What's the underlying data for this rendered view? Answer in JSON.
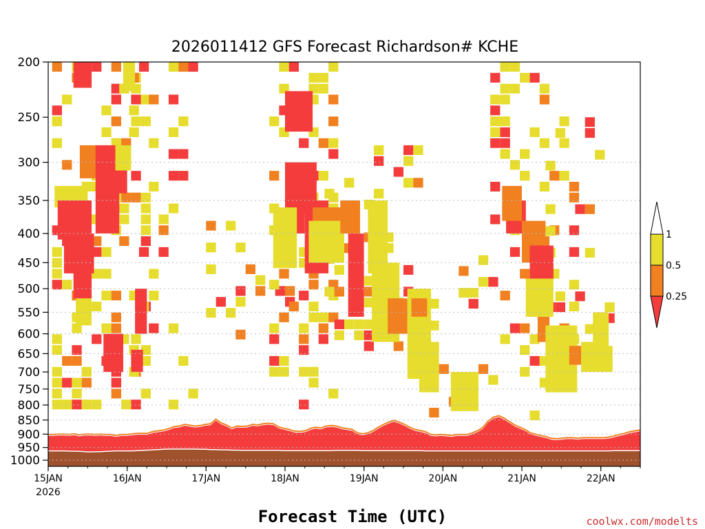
{
  "chart_data": {
    "type": "heatmap",
    "title": "2026011412 GFS Forecast Richardson# KCHE",
    "xlabel": "Forecast Time (UTC)",
    "ylabel": "",
    "x_ticks": [
      {
        "t": 0.5,
        "label": "15JAN",
        "sub": "2026"
      },
      {
        "t": 1.5,
        "label": "16JAN",
        "sub": ""
      },
      {
        "t": 2.5,
        "label": "17JAN",
        "sub": ""
      },
      {
        "t": 3.5,
        "label": "18JAN",
        "sub": ""
      },
      {
        "t": 4.5,
        "label": "19JAN",
        "sub": ""
      },
      {
        "t": 5.5,
        "label": "20JAN",
        "sub": ""
      },
      {
        "t": 6.5,
        "label": "21JAN",
        "sub": ""
      },
      {
        "t": 7.5,
        "label": "22JAN",
        "sub": ""
      }
    ],
    "xlim_days_since_14JAN00Z": [
      0.5,
      8.0
    ],
    "y_ticks": [
      "200",
      "250",
      "300",
      "350",
      "400",
      "450",
      "500",
      "550",
      "600",
      "650",
      "700",
      "750",
      "800",
      "850",
      "900",
      "950",
      "1000"
    ],
    "ylim_hPa": [
      200,
      1025
    ],
    "grid_levels_hPa": [
      300,
      350,
      400,
      450,
      500,
      550,
      600,
      650,
      700,
      750,
      800,
      850,
      900,
      950,
      1000
    ],
    "legend": {
      "levels": [
        "1",
        "0.5",
        "0.25"
      ],
      "colors": {
        "over": "#ffffff",
        "band_0_5_1": "#e6dd2e",
        "band_0_25_0_5": "#f08020",
        "band_lt_0_25": "#f43c3c"
      }
    },
    "colors": {
      "yellow": "#e6dd2e",
      "orange": "#f08020",
      "red": "#f43c3c",
      "ground": "#a0522d",
      "grid": "#bbbbbb"
    },
    "column_width_hours": 3,
    "boundary_layer_top_hPa": [
      906,
      906,
      905,
      905,
      906,
      904,
      908,
      905,
      905,
      906,
      905,
      906,
      906,
      910,
      906,
      906,
      904,
      902,
      902,
      902,
      895,
      893,
      890,
      885,
      878,
      876,
      870,
      873,
      876,
      874,
      870,
      868,
      852,
      865,
      872,
      883,
      876,
      877,
      876,
      870,
      872,
      868,
      866,
      868,
      879,
      884,
      888,
      894,
      895,
      893,
      885,
      880,
      883,
      876,
      874,
      876,
      882,
      885,
      888,
      900,
      904,
      900,
      892,
      880,
      870,
      862,
      856,
      862,
      870,
      880,
      888,
      892,
      896,
      906,
      908,
      906,
      908,
      910,
      906,
      906,
      906,
      900,
      892,
      880,
      858,
      845,
      840,
      848,
      860,
      872,
      880,
      888,
      900,
      905,
      910,
      914,
      920,
      922,
      920,
      918,
      918,
      920,
      918,
      918,
      918,
      918,
      918,
      916,
      912,
      906,
      902,
      896,
      893,
      890
    ],
    "surface_pressure_hPa": [
      963,
      963,
      963,
      963,
      964,
      964,
      965,
      966,
      967,
      966,
      966,
      965,
      964,
      963,
      963,
      963,
      963,
      962,
      961,
      960,
      959,
      958,
      957,
      956,
      956,
      956,
      956,
      956,
      956,
      957,
      957,
      958,
      958,
      959,
      959,
      960,
      960,
      961,
      961,
      961,
      961,
      961,
      961,
      961,
      961,
      962,
      962,
      962,
      962,
      962,
      962,
      962,
      962,
      962,
      962,
      961,
      961,
      961,
      961,
      961,
      962,
      962,
      962,
      962,
      962,
      962,
      962,
      962,
      962,
      962,
      962,
      962,
      963,
      963,
      963,
      963,
      963,
      963,
      963,
      963,
      963,
      963,
      963,
      963,
      963,
      963,
      963,
      963,
      963,
      963,
      963,
      963,
      963,
      963,
      963,
      963,
      963,
      963,
      963,
      963,
      963,
      963,
      963,
      963,
      963,
      963,
      963,
      963,
      962,
      962,
      962,
      962,
      962,
      962
    ],
    "blobs": [
      {
        "t": 0.82,
        "t2": 1.05,
        "p1": 200,
        "p2": 222,
        "v": "red"
      },
      {
        "t": 0.58,
        "t2": 1.0,
        "p1": 330,
        "p2": 360,
        "v": "yellow"
      },
      {
        "t": 0.62,
        "t2": 1.05,
        "p1": 350,
        "p2": 410,
        "v": "red"
      },
      {
        "t": 0.7,
        "t2": 1.08,
        "p1": 400,
        "p2": 470,
        "v": "red"
      },
      {
        "t": 0.82,
        "t2": 1.05,
        "p1": 450,
        "p2": 520,
        "v": "red"
      },
      {
        "t": 0.85,
        "t2": 1.05,
        "p1": 520,
        "p2": 580,
        "v": "yellow"
      },
      {
        "t": 0.9,
        "t2": 1.25,
        "p1": 280,
        "p2": 320,
        "v": "orange"
      },
      {
        "t": 1.1,
        "t2": 1.5,
        "p1": 280,
        "p2": 340,
        "v": "red"
      },
      {
        "t": 1.35,
        "t2": 1.55,
        "p1": 280,
        "p2": 310,
        "v": "yellow"
      },
      {
        "t": 1.1,
        "t2": 1.4,
        "p1": 330,
        "p2": 400,
        "v": "red"
      },
      {
        "t": 1.2,
        "t2": 1.45,
        "p1": 600,
        "p2": 700,
        "v": "red"
      },
      {
        "t": 1.45,
        "t2": 1.6,
        "p1": 200,
        "p2": 225,
        "v": "yellow"
      },
      {
        "t": 1.55,
        "t2": 1.7,
        "p1": 640,
        "p2": 700,
        "v": "red"
      },
      {
        "t": 1.6,
        "t2": 1.75,
        "p1": 500,
        "p2": 600,
        "v": "red"
      },
      {
        "t": 3.5,
        "t2": 3.85,
        "p1": 225,
        "p2": 265,
        "v": "red"
      },
      {
        "t": 3.5,
        "t2": 3.9,
        "p1": 300,
        "p2": 370,
        "v": "red"
      },
      {
        "t": 3.55,
        "t2": 3.75,
        "p1": 340,
        "p2": 400,
        "v": "red"
      },
      {
        "t": 3.75,
        "t2": 4.05,
        "p1": 350,
        "p2": 470,
        "v": "red"
      },
      {
        "t": 3.35,
        "t2": 3.65,
        "p1": 360,
        "p2": 460,
        "v": "yellow"
      },
      {
        "t": 3.85,
        "t2": 4.3,
        "p1": 360,
        "p2": 400,
        "v": "orange"
      },
      {
        "t": 3.8,
        "t2": 4.25,
        "p1": 380,
        "p2": 450,
        "v": "yellow"
      },
      {
        "t": 4.2,
        "t2": 4.45,
        "p1": 350,
        "p2": 400,
        "v": "orange"
      },
      {
        "t": 4.3,
        "t2": 4.5,
        "p1": 400,
        "p2": 560,
        "v": "red"
      },
      {
        "t": 4.55,
        "t2": 4.8,
        "p1": 350,
        "p2": 470,
        "v": "yellow"
      },
      {
        "t": 4.6,
        "t2": 4.95,
        "p1": 450,
        "p2": 620,
        "v": "yellow"
      },
      {
        "t": 4.8,
        "t2": 5.05,
        "p1": 520,
        "p2": 600,
        "v": "orange"
      },
      {
        "t": 5.05,
        "t2": 5.35,
        "p1": 500,
        "p2": 720,
        "v": "yellow"
      },
      {
        "t": 5.1,
        "t2": 5.3,
        "p1": 520,
        "p2": 560,
        "v": "orange"
      },
      {
        "t": 5.2,
        "t2": 5.45,
        "p1": 620,
        "p2": 760,
        "v": "yellow"
      },
      {
        "t": 5.6,
        "t2": 5.95,
        "p1": 700,
        "p2": 820,
        "v": "yellow"
      },
      {
        "t": 6.3,
        "t2": 6.55,
        "p1": 350,
        "p2": 400,
        "v": "red"
      },
      {
        "t": 6.25,
        "t2": 6.5,
        "p1": 330,
        "p2": 380,
        "v": "orange"
      },
      {
        "t": 6.5,
        "t2": 6.8,
        "p1": 380,
        "p2": 450,
        "v": "orange"
      },
      {
        "t": 6.6,
        "t2": 6.9,
        "p1": 420,
        "p2": 480,
        "v": "red"
      },
      {
        "t": 6.55,
        "t2": 6.9,
        "p1": 480,
        "p2": 560,
        "v": "yellow"
      },
      {
        "t": 6.7,
        "t2": 6.85,
        "p1": 560,
        "p2": 620,
        "v": "orange"
      },
      {
        "t": 6.8,
        "t2": 7.2,
        "p1": 580,
        "p2": 760,
        "v": "yellow"
      },
      {
        "t": 7.1,
        "t2": 7.4,
        "p1": 630,
        "p2": 680,
        "v": "orange"
      },
      {
        "t": 7.25,
        "t2": 7.5,
        "p1": 620,
        "p2": 700,
        "v": "yellow"
      },
      {
        "t": 7.4,
        "t2": 7.6,
        "p1": 550,
        "p2": 680,
        "v": "yellow"
      },
      {
        "t": 7.45,
        "t2": 7.65,
        "p1": 630,
        "p2": 700,
        "v": "yellow"
      }
    ],
    "scatter_seed": 20260114,
    "scatter_regions": [
      {
        "t": 0.55,
        "t2": 1.75,
        "p1": 200,
        "p2": 800,
        "d": 0.32
      },
      {
        "t": 1.4,
        "t2": 2.35,
        "p1": 200,
        "p2": 800,
        "d": 0.17
      },
      {
        "t": 2.5,
        "t2": 3.55,
        "p1": 380,
        "p2": 620,
        "d": 0.18
      },
      {
        "t": 3.3,
        "t2": 4.15,
        "p1": 200,
        "p2": 800,
        "d": 0.35
      },
      {
        "t": 4.0,
        "t2": 5.2,
        "p1": 280,
        "p2": 620,
        "d": 0.25
      },
      {
        "t": 5.2,
        "t2": 6.1,
        "p1": 400,
        "p2": 830,
        "d": 0.12
      },
      {
        "t": 6.1,
        "t2": 7.2,
        "p1": 200,
        "p2": 820,
        "d": 0.17
      },
      {
        "t": 6.8,
        "t2": 7.6,
        "p1": 250,
        "p2": 650,
        "d": 0.12
      }
    ]
  },
  "footer": {
    "credit": "coolwx.com/modelts"
  }
}
